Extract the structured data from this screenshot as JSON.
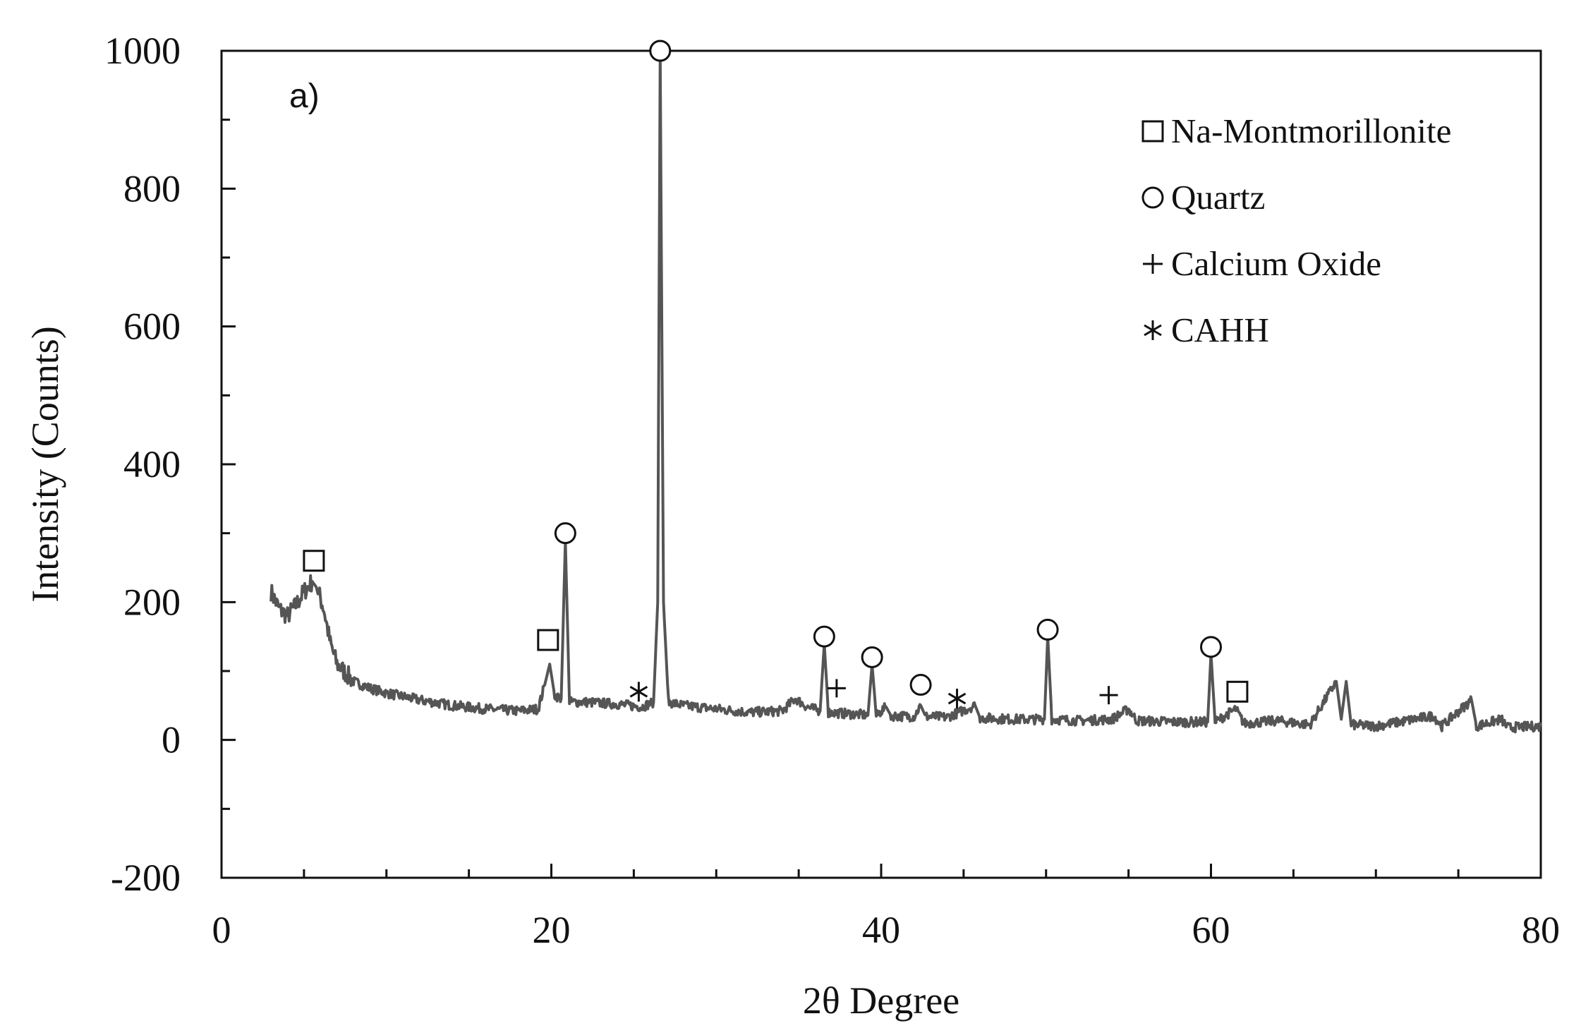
{
  "chart_data": {
    "type": "line",
    "panel_label": "a)",
    "xlabel": "2θ Degree",
    "ylabel": "Intensity (Counts)",
    "xlim": [
      0,
      80
    ],
    "ylim": [
      -200,
      1000
    ],
    "x_ticks": [
      0,
      20,
      40,
      60,
      80
    ],
    "y_ticks": [
      -200,
      0,
      200,
      400,
      600,
      800,
      1000
    ],
    "x_tick_labels": [
      "0",
      "20",
      "40",
      "60",
      "80"
    ],
    "y_tick_labels": [
      "-200",
      "0",
      "200",
      "400",
      "600",
      "800",
      "1000"
    ],
    "grid": false,
    "legend_position": "top-right",
    "line_color": "#555555",
    "legend": [
      {
        "label": "Na-Montmorillonite",
        "marker": "square"
      },
      {
        "label": "Quartz",
        "marker": "circle"
      },
      {
        "label": "Calcium Oxide",
        "marker": "plus"
      },
      {
        "label": "CAHH",
        "marker": "asterisk"
      }
    ],
    "series": [
      {
        "points": [
          [
            3,
            215
          ],
          [
            3.5,
            190
          ],
          [
            4,
            180
          ],
          [
            4.5,
            195
          ],
          [
            5,
            215
          ],
          [
            5.5,
            230
          ],
          [
            5.8,
            220
          ],
          [
            6.2,
            190
          ],
          [
            6.6,
            140
          ],
          [
            7,
            110
          ],
          [
            8,
            85
          ],
          [
            9,
            75
          ],
          [
            10,
            68
          ],
          [
            12,
            58
          ],
          [
            14,
            50
          ],
          [
            16,
            45
          ],
          [
            18,
            42
          ],
          [
            19.2,
            45
          ],
          [
            19.6,
            80
          ],
          [
            19.9,
            110
          ],
          [
            20.2,
            65
          ],
          [
            20.6,
            60
          ],
          [
            20.85,
            290
          ],
          [
            21.1,
            55
          ],
          [
            22,
            55
          ],
          [
            24,
            52
          ],
          [
            25.5,
            48
          ],
          [
            26.2,
            55
          ],
          [
            26.45,
            200
          ],
          [
            26.6,
            1000
          ],
          [
            26.8,
            200
          ],
          [
            27.1,
            55
          ],
          [
            28,
            50
          ],
          [
            30,
            45
          ],
          [
            32,
            40
          ],
          [
            34,
            42
          ],
          [
            34.8,
            60
          ],
          [
            35.5,
            48
          ],
          [
            36.3,
            42
          ],
          [
            36.55,
            140
          ],
          [
            36.8,
            40
          ],
          [
            38,
            38
          ],
          [
            39.2,
            36
          ],
          [
            39.45,
            110
          ],
          [
            39.7,
            35
          ],
          [
            40.3,
            48
          ],
          [
            40.6,
            35
          ],
          [
            42,
            34
          ],
          [
            42.4,
            50
          ],
          [
            42.7,
            34
          ],
          [
            44,
            33
          ],
          [
            45.7,
            50
          ],
          [
            46,
            32
          ],
          [
            48,
            30
          ],
          [
            49.9,
            30
          ],
          [
            50.1,
            150
          ],
          [
            50.35,
            30
          ],
          [
            52,
            28
          ],
          [
            54,
            30
          ],
          [
            55,
            45
          ],
          [
            55.5,
            28
          ],
          [
            58,
            26
          ],
          [
            59.8,
            26
          ],
          [
            60,
            125
          ],
          [
            60.25,
            26
          ],
          [
            61.5,
            45
          ],
          [
            62,
            24
          ],
          [
            64,
            28
          ],
          [
            66,
            22
          ],
          [
            67.6,
            85
          ],
          [
            67.9,
            30
          ],
          [
            68.2,
            85
          ],
          [
            68.5,
            22
          ],
          [
            70,
            20
          ],
          [
            73.5,
            35
          ],
          [
            74,
            20
          ],
          [
            75.8,
            58
          ],
          [
            76.1,
            20
          ],
          [
            77.6,
            30
          ],
          [
            78,
            18
          ],
          [
            80,
            20
          ]
        ]
      }
    ],
    "annotations": [
      {
        "marker": "square",
        "x": 5.6,
        "y": 260
      },
      {
        "marker": "square",
        "x": 19.8,
        "y": 145
      },
      {
        "marker": "square",
        "x": 61.6,
        "y": 70
      },
      {
        "marker": "circle",
        "x": 20.85,
        "y": 300
      },
      {
        "marker": "circle",
        "x": 26.6,
        "y": 1000
      },
      {
        "marker": "circle",
        "x": 36.55,
        "y": 150
      },
      {
        "marker": "circle",
        "x": 39.45,
        "y": 120
      },
      {
        "marker": "circle",
        "x": 42.4,
        "y": 80
      },
      {
        "marker": "circle",
        "x": 50.1,
        "y": 160
      },
      {
        "marker": "circle",
        "x": 60.0,
        "y": 135
      },
      {
        "marker": "plus",
        "x": 37.3,
        "y": 75
      },
      {
        "marker": "plus",
        "x": 53.8,
        "y": 65
      },
      {
        "marker": "asterisk",
        "x": 25.3,
        "y": 70
      },
      {
        "marker": "asterisk",
        "x": 44.6,
        "y": 60
      }
    ]
  }
}
